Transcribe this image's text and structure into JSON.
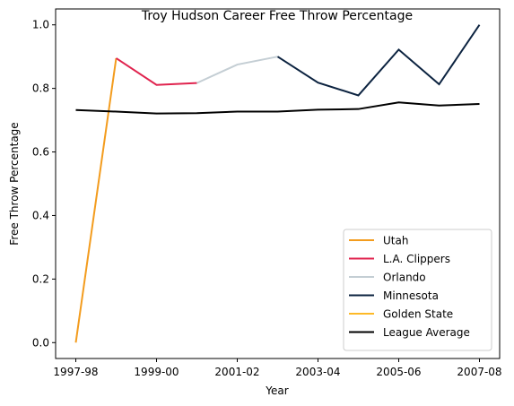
{
  "chart_data": {
    "type": "line",
    "title": "Troy Hudson Career Free Throw Percentage",
    "xlabel": "Year",
    "ylabel": "Free Throw Percentage",
    "categories": [
      "1997-98",
      null,
      "1999-00",
      null,
      "2001-02",
      null,
      "2003-04",
      null,
      "2005-06",
      null,
      "2007-08"
    ],
    "series": [
      {
        "name": "Utah",
        "color": "#f39c1e",
        "values": [
          0.0,
          0.895,
          null,
          null,
          null,
          null,
          null,
          null,
          null,
          null,
          null
        ]
      },
      {
        "name": "L.A. Clippers",
        "color": "#e0234e",
        "values": [
          null,
          0.895,
          0.811,
          0.817,
          null,
          null,
          null,
          null,
          null,
          null,
          null
        ]
      },
      {
        "name": "Orlando",
        "color": "#c4ced4",
        "values": [
          null,
          null,
          null,
          0.817,
          0.875,
          0.9,
          null,
          null,
          null,
          null,
          null
        ]
      },
      {
        "name": "Minnesota",
        "color": "#0c2340",
        "values": [
          null,
          null,
          null,
          null,
          null,
          0.9,
          0.818,
          0.778,
          0.922,
          0.813,
          1.0
        ]
      },
      {
        "name": "Golden State",
        "color": "#fdb927",
        "values": [
          null,
          null,
          null,
          null,
          null,
          null,
          null,
          null,
          null,
          null,
          1.0
        ]
      },
      {
        "name": "League Average",
        "color": "#000000",
        "values": [
          0.732,
          0.727,
          0.721,
          0.722,
          0.727,
          0.727,
          0.733,
          0.735,
          0.756,
          0.746,
          0.751
        ]
      }
    ],
    "ylim": [
      -0.05,
      1.05
    ],
    "yticks": [
      {
        "value": 0,
        "label": "0.0"
      },
      {
        "value": 0.2,
        "label": "0.2"
      },
      {
        "value": 0.4,
        "label": "0.4"
      },
      {
        "value": 0.6,
        "label": "0.6"
      },
      {
        "value": 0.8,
        "label": "0.8"
      },
      {
        "value": 1.0,
        "label": "1.0"
      }
    ],
    "legend": "lower right"
  }
}
